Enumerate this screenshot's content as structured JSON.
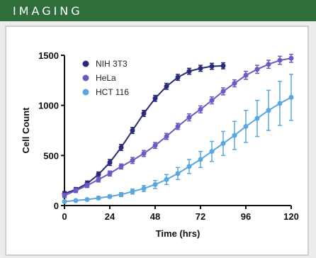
{
  "header": {
    "title": "IMAGING"
  },
  "colors": {
    "header_bg": "#2f6e3a",
    "panel_bg": "#ececea"
  },
  "chart_data": {
    "type": "line",
    "xlabel": "Time (hrs)",
    "ylabel": "Cell Count",
    "xlim": [
      0,
      120
    ],
    "ylim": [
      0,
      1500
    ],
    "xticks": [
      0,
      24,
      48,
      72,
      96,
      120
    ],
    "yticks": [
      0,
      500,
      1000,
      1500
    ],
    "legend_position": "top-left",
    "series": [
      {
        "name": "NIH 3T3",
        "color": "#2a2a7a",
        "x": [
          0,
          6,
          12,
          18,
          24,
          30,
          36,
          42,
          48,
          54,
          60,
          66,
          72,
          78,
          84
        ],
        "values": [
          120,
          160,
          220,
          310,
          430,
          580,
          750,
          920,
          1070,
          1190,
          1280,
          1340,
          1370,
          1390,
          1395
        ],
        "error": [
          20,
          20,
          25,
          25,
          30,
          30,
          30,
          30,
          30,
          30,
          30,
          30,
          30,
          30,
          30
        ]
      },
      {
        "name": "HeLa",
        "color": "#6a5bc4",
        "x": [
          0,
          6,
          12,
          18,
          24,
          30,
          36,
          42,
          48,
          54,
          60,
          66,
          72,
          78,
          84,
          90,
          96,
          102,
          108,
          114,
          120
        ],
        "values": [
          100,
          150,
          200,
          260,
          320,
          390,
          450,
          520,
          600,
          690,
          790,
          880,
          960,
          1050,
          1140,
          1220,
          1300,
          1360,
          1410,
          1450,
          1470
        ],
        "error": [
          20,
          20,
          20,
          25,
          25,
          25,
          30,
          30,
          30,
          30,
          30,
          35,
          35,
          35,
          35,
          35,
          40,
          40,
          40,
          40,
          40
        ]
      },
      {
        "name": "HCT 116",
        "color": "#5aa7e0",
        "x": [
          0,
          6,
          12,
          18,
          24,
          30,
          36,
          42,
          48,
          54,
          60,
          66,
          72,
          78,
          84,
          90,
          96,
          102,
          108,
          114,
          120
        ],
        "values": [
          40,
          50,
          60,
          75,
          90,
          110,
          140,
          170,
          210,
          260,
          320,
          390,
          460,
          540,
          620,
          700,
          790,
          870,
          950,
          1020,
          1080
        ],
        "error": [
          10,
          10,
          10,
          15,
          15,
          20,
          25,
          30,
          40,
          50,
          60,
          70,
          80,
          100,
          120,
          140,
          160,
          180,
          200,
          220,
          230
        ]
      }
    ]
  }
}
